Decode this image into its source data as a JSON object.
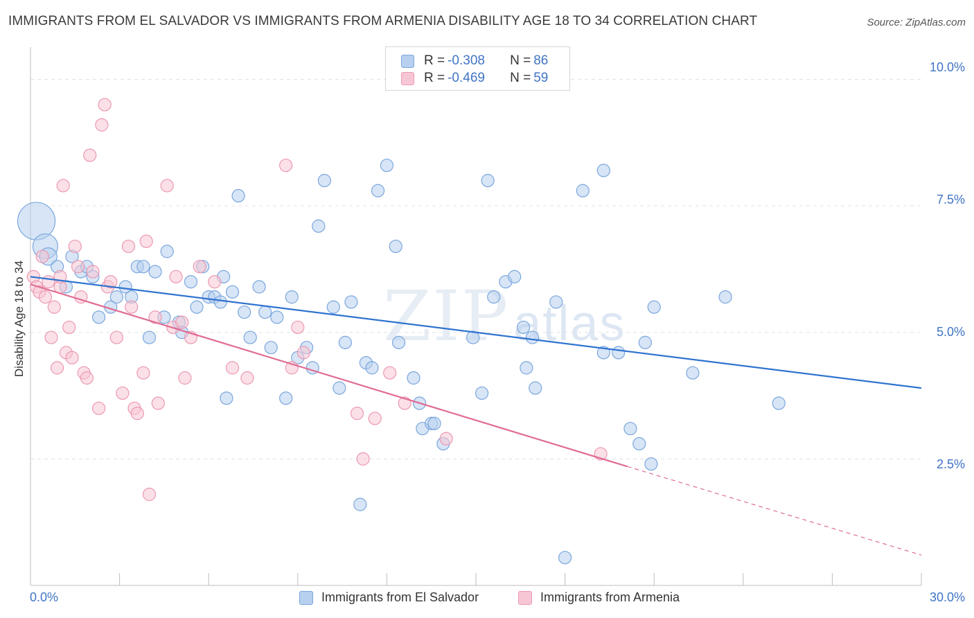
{
  "header": {
    "title": "IMMIGRANTS FROM EL SALVADOR VS IMMIGRANTS FROM ARMENIA DISABILITY AGE 18 TO 34 CORRELATION CHART",
    "source": "Source: ZipAtlas.com"
  },
  "watermark": {
    "part1": "ZIP",
    "part2": "atlas"
  },
  "legend": {
    "rows": [
      {
        "r_label": "R =",
        "r_value": "-0.308",
        "n_label": "N =",
        "n_value": "86"
      },
      {
        "r_label": "R =",
        "r_value": "-0.469",
        "n_label": "N =",
        "n_value": "59"
      }
    ]
  },
  "bottom_legend": {
    "series1": "Immigrants from El Salvador",
    "series2": "Immigrants from Armenia"
  },
  "colors": {
    "blue_fill": "#b7d0ef",
    "blue_stroke": "#7aa6dd",
    "blue_line": "#2f73d0",
    "pink_fill": "#f7c6d4",
    "pink_stroke": "#eb98b1",
    "pink_line": "#e06b93",
    "tick_text": "#3f74c4",
    "grid": "#e2e2e2"
  },
  "chart_data": {
    "type": "scatter",
    "title": "IMMIGRANTS FROM EL SALVADOR VS IMMIGRANTS FROM ARMENIA DISABILITY AGE 18 TO 34 CORRELATION CHART",
    "xlabel": "",
    "ylabel": "Disability Age 18 to 34",
    "xlim": [
      0,
      30
    ],
    "ylim": [
      0,
      10.5
    ],
    "x_tick_labels": [
      "0.0%",
      "30.0%"
    ],
    "y_ticks": [
      2.5,
      5.0,
      7.5,
      10.0
    ],
    "y_tick_labels": [
      "2.5%",
      "5.0%",
      "7.5%",
      "10.0%"
    ],
    "grid": true,
    "legend_position": "top-center",
    "series": [
      {
        "name": "Immigrants from El Salvador",
        "color": "#7aa6dd",
        "r": -0.308,
        "n": 86,
        "trend": {
          "x": [
            0,
            30
          ],
          "y": [
            6.1,
            3.9
          ]
        },
        "points": [
          [
            0.2,
            7.2,
            3
          ],
          [
            0.5,
            6.7,
            2
          ],
          [
            0.6,
            6.5,
            1.4
          ],
          [
            0.9,
            6.3,
            1
          ],
          [
            1.2,
            5.9,
            1
          ],
          [
            1.4,
            6.5,
            1
          ],
          [
            1.7,
            6.2,
            1
          ],
          [
            1.9,
            6.3,
            1
          ],
          [
            2.1,
            6.1,
            1
          ],
          [
            2.3,
            5.3,
            1
          ],
          [
            2.7,
            5.5,
            1
          ],
          [
            2.9,
            5.7,
            1
          ],
          [
            3.2,
            5.9,
            1
          ],
          [
            3.4,
            5.7,
            1
          ],
          [
            3.6,
            6.3,
            1
          ],
          [
            3.8,
            6.3,
            1
          ],
          [
            4.0,
            4.9,
            1
          ],
          [
            4.2,
            6.2,
            1
          ],
          [
            4.5,
            5.3,
            1
          ],
          [
            4.6,
            6.6,
            1
          ],
          [
            5.0,
            5.2,
            1
          ],
          [
            5.1,
            5.0,
            1
          ],
          [
            5.4,
            6.0,
            1
          ],
          [
            5.6,
            5.5,
            1
          ],
          [
            5.8,
            6.3,
            1
          ],
          [
            6.0,
            5.7,
            1
          ],
          [
            6.2,
            5.7,
            1
          ],
          [
            6.4,
            5.6,
            1
          ],
          [
            6.6,
            3.7,
            1
          ],
          [
            6.8,
            5.8,
            1
          ],
          [
            7.0,
            7.7,
            1
          ],
          [
            7.2,
            5.4,
            1
          ],
          [
            7.4,
            4.9,
            1
          ],
          [
            7.7,
            5.9,
            1
          ],
          [
            7.9,
            5.4,
            1
          ],
          [
            8.1,
            4.7,
            1
          ],
          [
            8.3,
            5.3,
            1
          ],
          [
            8.6,
            3.7,
            1
          ],
          [
            8.8,
            5.7,
            1
          ],
          [
            9.0,
            4.5,
            1
          ],
          [
            9.3,
            4.7,
            1
          ],
          [
            9.5,
            4.3,
            1
          ],
          [
            9.7,
            7.1,
            1
          ],
          [
            9.9,
            8.0,
            1
          ],
          [
            10.2,
            5.5,
            1
          ],
          [
            10.4,
            3.9,
            1
          ],
          [
            10.6,
            4.8,
            1
          ],
          [
            10.8,
            5.6,
            1
          ],
          [
            11.1,
            1.6,
            1
          ],
          [
            11.3,
            4.4,
            1
          ],
          [
            11.5,
            4.3,
            1
          ],
          [
            11.7,
            7.8,
            1
          ],
          [
            12.0,
            8.3,
            1
          ],
          [
            12.3,
            6.7,
            1
          ],
          [
            12.4,
            4.8,
            1
          ],
          [
            12.9,
            4.1,
            1
          ],
          [
            13.1,
            3.6,
            1
          ],
          [
            13.2,
            3.1,
            1
          ],
          [
            13.5,
            3.2,
            1
          ],
          [
            13.6,
            3.2,
            1
          ],
          [
            13.9,
            2.8,
            1
          ],
          [
            14.9,
            4.9,
            1
          ],
          [
            15.2,
            3.8,
            1
          ],
          [
            15.4,
            8.0,
            1
          ],
          [
            15.6,
            5.7,
            1
          ],
          [
            16.0,
            6.0,
            1
          ],
          [
            16.3,
            6.1,
            1
          ],
          [
            16.6,
            5.1,
            1
          ],
          [
            16.7,
            4.3,
            1
          ],
          [
            16.9,
            4.9,
            1
          ],
          [
            17.7,
            5.6,
            1
          ],
          [
            18.0,
            0.55,
            1
          ],
          [
            18.6,
            7.8,
            1
          ],
          [
            19.3,
            4.6,
            1
          ],
          [
            19.3,
            8.2,
            1
          ],
          [
            19.8,
            4.6,
            1
          ],
          [
            20.2,
            3.1,
            1
          ],
          [
            20.5,
            2.8,
            1
          ],
          [
            20.7,
            4.8,
            1
          ],
          [
            20.9,
            2.4,
            1
          ],
          [
            21.0,
            5.5,
            1
          ],
          [
            22.3,
            4.2,
            1
          ],
          [
            23.4,
            5.7,
            1
          ],
          [
            25.2,
            3.6,
            1
          ],
          [
            6.5,
            6.1,
            1
          ],
          [
            17.0,
            3.9,
            1
          ]
        ]
      },
      {
        "name": "Immigrants from Armenia",
        "color": "#eb98b1",
        "r": -0.469,
        "n": 59,
        "trend": {
          "x": [
            0,
            20.1
          ],
          "y": [
            5.95,
            2.35
          ]
        },
        "trend_extension": {
          "x": [
            20.1,
            30
          ],
          "y": [
            2.35,
            0.6
          ]
        },
        "points": [
          [
            0.1,
            6.1,
            1
          ],
          [
            0.2,
            5.9,
            1
          ],
          [
            0.3,
            5.8,
            1
          ],
          [
            0.4,
            6.5,
            1
          ],
          [
            0.5,
            5.7,
            1
          ],
          [
            0.6,
            6.0,
            1
          ],
          [
            0.7,
            4.9,
            1
          ],
          [
            0.8,
            5.5,
            1
          ],
          [
            0.9,
            4.3,
            1
          ],
          [
            1.0,
            5.9,
            1
          ],
          [
            1.1,
            7.9,
            1
          ],
          [
            1.2,
            4.6,
            1
          ],
          [
            1.3,
            5.1,
            1
          ],
          [
            1.4,
            4.5,
            1
          ],
          [
            1.5,
            6.7,
            1
          ],
          [
            1.6,
            6.3,
            1
          ],
          [
            1.7,
            5.7,
            1
          ],
          [
            1.8,
            4.2,
            1
          ],
          [
            1.9,
            4.1,
            1
          ],
          [
            2.0,
            8.5,
            1
          ],
          [
            2.1,
            6.2,
            1
          ],
          [
            2.3,
            3.5,
            1
          ],
          [
            2.4,
            9.1,
            1
          ],
          [
            2.5,
            9.5,
            1
          ],
          [
            2.6,
            5.9,
            1
          ],
          [
            2.7,
            6.0,
            1
          ],
          [
            2.9,
            4.9,
            1
          ],
          [
            3.1,
            3.8,
            1
          ],
          [
            3.3,
            6.7,
            1
          ],
          [
            3.4,
            5.5,
            1
          ],
          [
            3.5,
            3.5,
            1
          ],
          [
            3.6,
            3.4,
            1
          ],
          [
            3.8,
            4.2,
            1
          ],
          [
            4.0,
            1.8,
            1
          ],
          [
            4.2,
            5.3,
            1
          ],
          [
            4.3,
            3.6,
            1
          ],
          [
            4.6,
            7.9,
            1
          ],
          [
            4.8,
            5.1,
            1
          ],
          [
            4.9,
            6.1,
            1
          ],
          [
            5.1,
            5.2,
            1
          ],
          [
            5.2,
            4.1,
            1
          ],
          [
            5.4,
            4.9,
            1
          ],
          [
            5.7,
            6.3,
            1
          ],
          [
            6.2,
            6.0,
            1
          ],
          [
            6.8,
            4.3,
            1
          ],
          [
            7.3,
            4.1,
            1
          ],
          [
            8.6,
            8.3,
            1
          ],
          [
            8.8,
            4.3,
            1
          ],
          [
            9.0,
            5.1,
            1
          ],
          [
            9.2,
            4.6,
            1
          ],
          [
            11.0,
            3.4,
            1
          ],
          [
            11.2,
            2.5,
            1
          ],
          [
            11.6,
            3.3,
            1
          ],
          [
            12.1,
            4.2,
            1
          ],
          [
            12.6,
            3.6,
            1
          ],
          [
            14.0,
            2.9,
            1
          ],
          [
            19.2,
            2.6,
            1
          ],
          [
            1.0,
            6.1,
            1
          ],
          [
            3.9,
            6.8,
            1
          ]
        ]
      }
    ]
  },
  "axis": {
    "x_left_label": "0.0%",
    "x_right_label": "30.0%",
    "y_labels": [
      "10.0%",
      "7.5%",
      "5.0%",
      "2.5%"
    ]
  }
}
